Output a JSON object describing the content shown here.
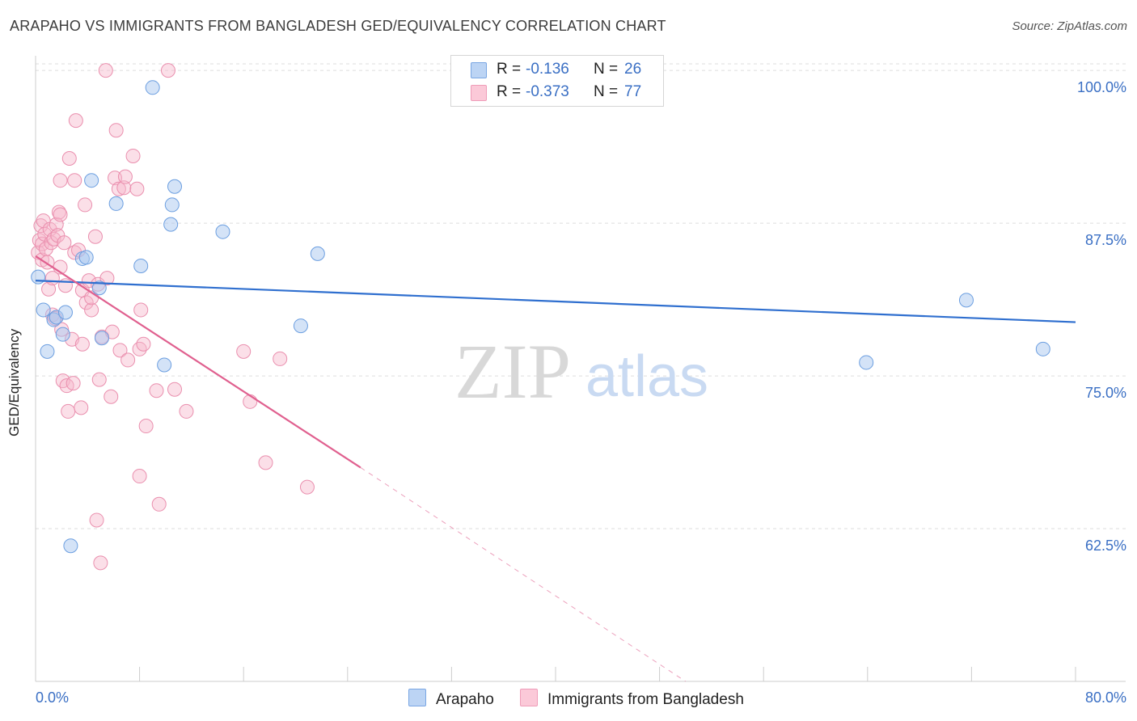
{
  "title": "ARAPAHO VS IMMIGRANTS FROM BANGLADESH GED/EQUIVALENCY CORRELATION CHART",
  "source": "Source: ZipAtlas.com",
  "watermark": {
    "zip": "ZIP",
    "atlas": "atlas"
  },
  "colors": {
    "blue_fill": "#a9c8f0",
    "blue_stroke": "#6b9ee0",
    "blue_line": "#2f6fcf",
    "pink_fill": "#f7b8cc",
    "pink_stroke": "#ea8fae",
    "pink_line": "#e0608f",
    "axis_text": "#3a6fc4",
    "grid": "#dddddd"
  },
  "legend": {
    "r_label": "R =",
    "n_label": "N =",
    "series": [
      {
        "name": "Arapaho",
        "r": "-0.136",
        "n": "26"
      },
      {
        "name": "Immigrants from Bangladesh",
        "r": "-0.373",
        "n": "77"
      }
    ]
  },
  "chart_data": {
    "type": "scatter",
    "title": "ARAPAHO VS IMMIGRANTS FROM BANGLADESH GED/EQUIVALENCY CORRELATION CHART",
    "xlabel": "",
    "ylabel": "GED/Equivalency",
    "xlim": [
      0,
      80
    ],
    "ylim": [
      50,
      101.2
    ],
    "x_tick_labels": [
      "0.0%",
      "80.0%"
    ],
    "y_ticks": [
      62.5,
      75.0,
      87.5,
      100.0
    ],
    "y_tick_labels": [
      "62.5%",
      "75.0%",
      "87.5%",
      "100.0%"
    ],
    "grid": true,
    "series": [
      {
        "name": "Arapaho",
        "points": [
          [
            0.2,
            83.1
          ],
          [
            0.6,
            80.4
          ],
          [
            0.9,
            77.0
          ],
          [
            1.4,
            79.6
          ],
          [
            1.6,
            79.8
          ],
          [
            2.1,
            78.4
          ],
          [
            2.3,
            80.2
          ],
          [
            2.7,
            61.1
          ],
          [
            3.6,
            84.6
          ],
          [
            3.9,
            84.7
          ],
          [
            4.3,
            91.0
          ],
          [
            4.9,
            82.2
          ],
          [
            5.1,
            78.1
          ],
          [
            6.2,
            89.1
          ],
          [
            8.1,
            84.0
          ],
          [
            9.0,
            98.6
          ],
          [
            9.9,
            75.9
          ],
          [
            10.4,
            87.4
          ],
          [
            10.5,
            89.0
          ],
          [
            10.7,
            90.5
          ],
          [
            14.4,
            86.8
          ],
          [
            20.4,
            79.1
          ],
          [
            21.7,
            85.0
          ],
          [
            63.9,
            76.1
          ],
          [
            71.6,
            81.2
          ],
          [
            77.5,
            77.2
          ]
        ],
        "trend": {
          "x": [
            0,
            80
          ],
          "y": [
            82.8,
            79.4
          ]
        }
      },
      {
        "name": "Immigrants from Bangladesh",
        "points": [
          [
            0.2,
            85.1
          ],
          [
            0.3,
            86.1
          ],
          [
            0.4,
            87.3
          ],
          [
            0.5,
            85.8
          ],
          [
            0.5,
            84.5
          ],
          [
            0.6,
            87.7
          ],
          [
            0.7,
            86.6
          ],
          [
            0.8,
            85.4
          ],
          [
            0.9,
            84.3
          ],
          [
            1.0,
            82.1
          ],
          [
            1.1,
            87.0
          ],
          [
            1.2,
            85.9
          ],
          [
            1.3,
            83.0
          ],
          [
            1.3,
            80.0
          ],
          [
            1.4,
            86.2
          ],
          [
            1.5,
            79.7
          ],
          [
            1.6,
            87.4
          ],
          [
            1.7,
            86.5
          ],
          [
            1.8,
            88.4
          ],
          [
            1.9,
            83.9
          ],
          [
            1.9,
            91.0
          ],
          [
            1.9,
            88.2
          ],
          [
            2.0,
            78.8
          ],
          [
            2.1,
            74.6
          ],
          [
            2.2,
            85.9
          ],
          [
            2.3,
            82.4
          ],
          [
            2.4,
            74.2
          ],
          [
            2.5,
            72.1
          ],
          [
            2.6,
            92.8
          ],
          [
            2.8,
            78.0
          ],
          [
            2.9,
            74.4
          ],
          [
            3.0,
            91.0
          ],
          [
            3.0,
            85.1
          ],
          [
            3.1,
            95.9
          ],
          [
            3.3,
            85.3
          ],
          [
            3.5,
            72.4
          ],
          [
            3.6,
            82.0
          ],
          [
            3.6,
            77.6
          ],
          [
            3.8,
            89.0
          ],
          [
            3.9,
            81.0
          ],
          [
            4.1,
            82.8
          ],
          [
            4.3,
            80.4
          ],
          [
            4.3,
            81.4
          ],
          [
            4.6,
            86.4
          ],
          [
            4.7,
            63.2
          ],
          [
            4.8,
            82.5
          ],
          [
            4.9,
            74.7
          ],
          [
            5.0,
            59.7
          ],
          [
            5.1,
            78.2
          ],
          [
            5.4,
            100.0
          ],
          [
            5.5,
            83.0
          ],
          [
            5.8,
            73.3
          ],
          [
            5.9,
            78.6
          ],
          [
            6.1,
            91.2
          ],
          [
            6.2,
            95.1
          ],
          [
            6.4,
            90.3
          ],
          [
            6.5,
            77.1
          ],
          [
            6.8,
            90.4
          ],
          [
            6.9,
            91.3
          ],
          [
            7.1,
            76.3
          ],
          [
            7.5,
            93.0
          ],
          [
            7.8,
            90.3
          ],
          [
            8.0,
            77.2
          ],
          [
            8.0,
            66.8
          ],
          [
            8.1,
            80.4
          ],
          [
            8.3,
            77.6
          ],
          [
            8.5,
            70.9
          ],
          [
            9.3,
            73.8
          ],
          [
            9.5,
            64.5
          ],
          [
            10.2,
            100.0
          ],
          [
            10.7,
            73.9
          ],
          [
            11.6,
            72.1
          ],
          [
            16.0,
            77.0
          ],
          [
            16.5,
            72.9
          ],
          [
            17.7,
            67.9
          ],
          [
            18.8,
            76.4
          ],
          [
            20.9,
            65.9
          ]
        ],
        "trend": {
          "x": [
            0,
            25
          ],
          "y": [
            84.8,
            67.5
          ]
        },
        "trend_extension": {
          "x": [
            25,
            50
          ],
          "y": [
            67.5,
            50.0
          ]
        }
      }
    ]
  }
}
